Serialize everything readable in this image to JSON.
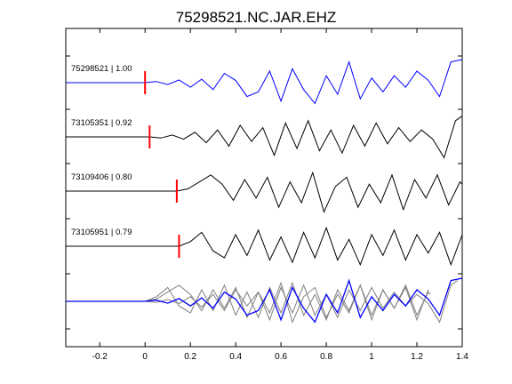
{
  "chart_data": {
    "type": "line",
    "title": "75298521.NC.JAR.EHZ",
    "xlabel": "",
    "ylabel": "",
    "xlim": [
      -0.35,
      1.4
    ],
    "xticks": [
      -0.2,
      0,
      0.2,
      0.4,
      0.6,
      0.8,
      1,
      1.2,
      1.4
    ],
    "xtick_labels": [
      "-0.2",
      "0",
      "0.2",
      "0.4",
      "0.6",
      "0.8",
      "1",
      "1.2",
      "1.4"
    ],
    "grid": false,
    "traces": [
      {
        "label": "75298521 | 1.00",
        "pick_time": 0.0,
        "color": "#0000ff",
        "x": [
          -0.35,
          0.0,
          0.05,
          0.1,
          0.15,
          0.2,
          0.25,
          0.3,
          0.35,
          0.4,
          0.45,
          0.5,
          0.55,
          0.6,
          0.65,
          0.7,
          0.75,
          0.8,
          0.85,
          0.9,
          0.95,
          1.0,
          1.05,
          1.1,
          1.15,
          1.2,
          1.25,
          1.3,
          1.35,
          1.4
        ],
        "y": [
          0,
          0,
          0.05,
          -0.08,
          0.12,
          -0.2,
          0.15,
          -0.3,
          0.4,
          0.1,
          -0.6,
          -0.4,
          0.5,
          -0.8,
          0.6,
          -0.3,
          -0.9,
          0.3,
          -0.5,
          0.9,
          -0.7,
          0.2,
          -0.4,
          0.3,
          -0.2,
          0.5,
          0.1,
          -0.6,
          0.9,
          1.0
        ]
      },
      {
        "label": "73105351 | 0.92",
        "pick_time": 0.02,
        "color": "#000000",
        "x": [
          -0.35,
          0.02,
          0.07,
          0.12,
          0.17,
          0.22,
          0.27,
          0.32,
          0.37,
          0.42,
          0.47,
          0.52,
          0.57,
          0.62,
          0.67,
          0.72,
          0.77,
          0.82,
          0.87,
          0.92,
          0.97,
          1.02,
          1.07,
          1.12,
          1.17,
          1.22,
          1.27,
          1.32,
          1.37,
          1.4
        ],
        "y": [
          0,
          0,
          -0.05,
          0.08,
          -0.1,
          0.2,
          -0.25,
          0.3,
          -0.4,
          0.5,
          -0.2,
          0.4,
          -0.8,
          0.6,
          -0.5,
          0.7,
          -0.6,
          0.3,
          -0.7,
          0.5,
          -0.4,
          0.6,
          -0.3,
          0.4,
          -0.2,
          0.3,
          -0.1,
          -0.9,
          0.7,
          0.9
        ]
      },
      {
        "label": "73109406 | 0.80",
        "pick_time": 0.14,
        "color": "#000000",
        "x": [
          -0.35,
          0.14,
          0.19,
          0.24,
          0.29,
          0.34,
          0.39,
          0.44,
          0.49,
          0.54,
          0.59,
          0.64,
          0.69,
          0.74,
          0.79,
          0.84,
          0.89,
          0.94,
          0.99,
          1.04,
          1.09,
          1.14,
          1.19,
          1.24,
          1.29,
          1.34,
          1.39,
          1.4
        ],
        "y": [
          0,
          0,
          0.1,
          0.4,
          0.7,
          0.3,
          -0.4,
          0.5,
          -0.3,
          0.6,
          -0.7,
          0.4,
          -0.5,
          0.8,
          -0.9,
          0.2,
          0.6,
          -0.7,
          0.3,
          -0.5,
          0.7,
          -0.8,
          0.5,
          -0.3,
          0.7,
          -0.6,
          0.4,
          0.3
        ]
      },
      {
        "label": "73105951 | 0.79",
        "pick_time": 0.15,
        "color": "#000000",
        "x": [
          -0.35,
          0.15,
          0.2,
          0.25,
          0.3,
          0.35,
          0.4,
          0.45,
          0.5,
          0.55,
          0.6,
          0.65,
          0.7,
          0.75,
          0.8,
          0.85,
          0.9,
          0.95,
          1.0,
          1.05,
          1.1,
          1.15,
          1.2,
          1.25,
          1.3,
          1.35,
          1.4
        ],
        "y": [
          0,
          0,
          0.2,
          0.6,
          -0.2,
          -0.5,
          0.5,
          -0.4,
          0.7,
          -0.6,
          0.4,
          -0.7,
          0.6,
          -0.5,
          0.8,
          -0.6,
          0.3,
          -0.8,
          0.5,
          -0.4,
          0.7,
          -0.6,
          0.5,
          -0.3,
          0.6,
          -0.8,
          0.5
        ]
      }
    ],
    "stack": {
      "colors": [
        "#0000ff",
        "#808080"
      ]
    }
  }
}
